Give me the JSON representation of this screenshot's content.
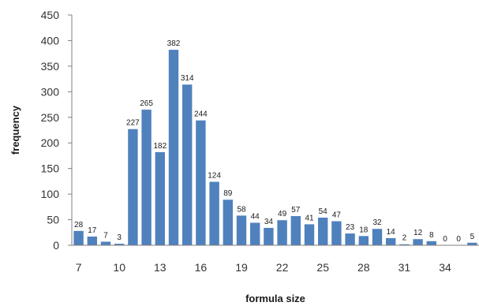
{
  "chart_data": {
    "type": "bar",
    "title": "",
    "xlabel": "formula size",
    "ylabel": "frequency",
    "categories": [
      7,
      8,
      9,
      10,
      11,
      12,
      13,
      14,
      15,
      16,
      17,
      18,
      19,
      20,
      21,
      22,
      23,
      24,
      25,
      26,
      27,
      28,
      29,
      30,
      31,
      32,
      33,
      34,
      35,
      36
    ],
    "values": [
      28,
      17,
      7,
      3,
      227,
      265,
      182,
      382,
      314,
      244,
      124,
      89,
      58,
      44,
      34,
      49,
      57,
      41,
      54,
      47,
      23,
      18,
      32,
      14,
      2,
      12,
      8,
      0,
      0,
      5
    ],
    "data_labels": [
      "28",
      "17",
      "7",
      "3",
      "227",
      "265",
      "182",
      "382",
      "314",
      "244",
      "124",
      "89",
      "58",
      "44",
      "34",
      "49",
      "57",
      "41",
      "54",
      "47",
      "23",
      "18",
      "32",
      "14",
      "2",
      "12",
      "8",
      "0",
      "0",
      "5"
    ],
    "x_tick_labels": [
      "7",
      "10",
      "13",
      "16",
      "19",
      "22",
      "25",
      "28",
      "31",
      "34"
    ],
    "x_tick_values": [
      7,
      10,
      13,
      16,
      19,
      22,
      25,
      28,
      31,
      34
    ],
    "y_ticks": [
      0,
      50,
      100,
      150,
      200,
      250,
      300,
      350,
      400,
      450
    ],
    "y_tick_labels": [
      "0",
      "50",
      "100",
      "150",
      "200",
      "250",
      "300",
      "350",
      "400",
      "450"
    ],
    "ylim": [
      0,
      450
    ],
    "grid": false,
    "legend": "none",
    "bar_color": "#4f81bd"
  }
}
